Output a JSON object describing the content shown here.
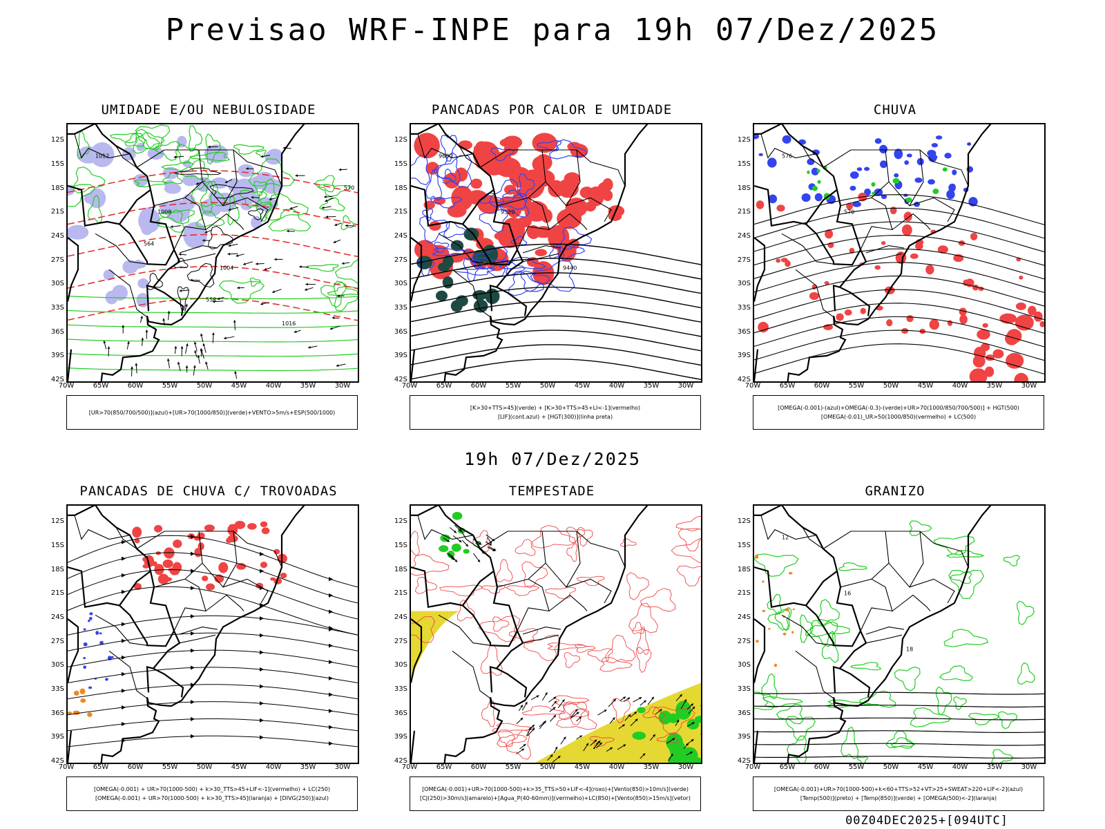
{
  "title": "Previsao WRF-INPE  para 19h 07/Dez/2025",
  "subtitle": "19h 07/Dez/2025",
  "footer": "00Z04DEC2025+[094UTC]",
  "axes": {
    "lat_labels": [
      "12S",
      "15S",
      "18S",
      "21S",
      "24S",
      "27S",
      "30S",
      "33S",
      "36S",
      "39S",
      "42S"
    ],
    "lon_labels": [
      "70W",
      "65W",
      "60W",
      "55W",
      "50W",
      "45W",
      "40W",
      "35W",
      "30W"
    ]
  },
  "panels": [
    {
      "id": "umidade",
      "title": "UMIDADE E/OU NEBULOSIDADE",
      "legend": [
        "[UR>70(850/700/500)](azul)+[UR>70(1000/850)](verde)+VENTO>5m/s+ESP(500/1000)"
      ],
      "contour_labels": [
        "1012",
        "1008",
        "1004",
        "1016",
        "570",
        "564",
        "558"
      ]
    },
    {
      "id": "pancadas-calor",
      "title": "PANCADAS POR CALOR E UMIDADE",
      "legend": [
        "[K>30+TTS>45](verde) + [K>30+TTS>45+LI<-1](vermelho)",
        "[LIF](cont.azul) + [HGT(300)](linha preta)"
      ],
      "contour_labels": [
        "9600",
        "9520",
        "9440"
      ]
    },
    {
      "id": "chuva",
      "title": "CHUVA",
      "legend": [
        "[OMEGA(-0.001)-(azul)+OMEGA(-0.3)-(verde)+UR>70(1000/850/700/500)] + HGT(500)",
        "[OMEGA(-0.01)_UR>50(1000/850)(vermelho) + LC(500)"
      ],
      "contour_labels": [
        "576",
        "570"
      ]
    },
    {
      "id": "trovoadas",
      "title": "PANCADAS DE CHUVA C/ TROVOADAS",
      "legend": [
        "[OMEGA(-0.001) + UR>70(1000-500) + k>30_TTS>45+LIF<-1](vermelho) + LC(250)",
        "[OMEGA(-0.001) + UR>70(1000-500) + k>30_TTS>45](laranja) + [DIVG(250)](azul)"
      ],
      "contour_labels": []
    },
    {
      "id": "tempestade",
      "title": "TEMPESTADE",
      "legend": [
        "[OMEGA(-0.001)+UR>70(1000-500)+k>35_TTS>50+LIF<-4](roxo)+[Vento(850)>10m/s](verde)",
        "[CJ(250)>30m/s](amarelo)+[Agua_P(40-60mm)](vermelho)+LC(850)+[Vento(850)>15m/s](vetor)"
      ],
      "contour_labels": []
    },
    {
      "id": "granizo",
      "title": "GRANIZO",
      "legend": [
        "[OMEGA(-0.001)+UR>70(1000-500)+k<60+TTS>52+VT>25+SWEAT>220+LIF<-2](azul)",
        "[Temp(500)](preto) + [Temp(850)](verde) + [OMEGA(500)<-2](laranja)"
      ],
      "contour_labels": [
        "12",
        "16",
        "18"
      ]
    }
  ]
}
